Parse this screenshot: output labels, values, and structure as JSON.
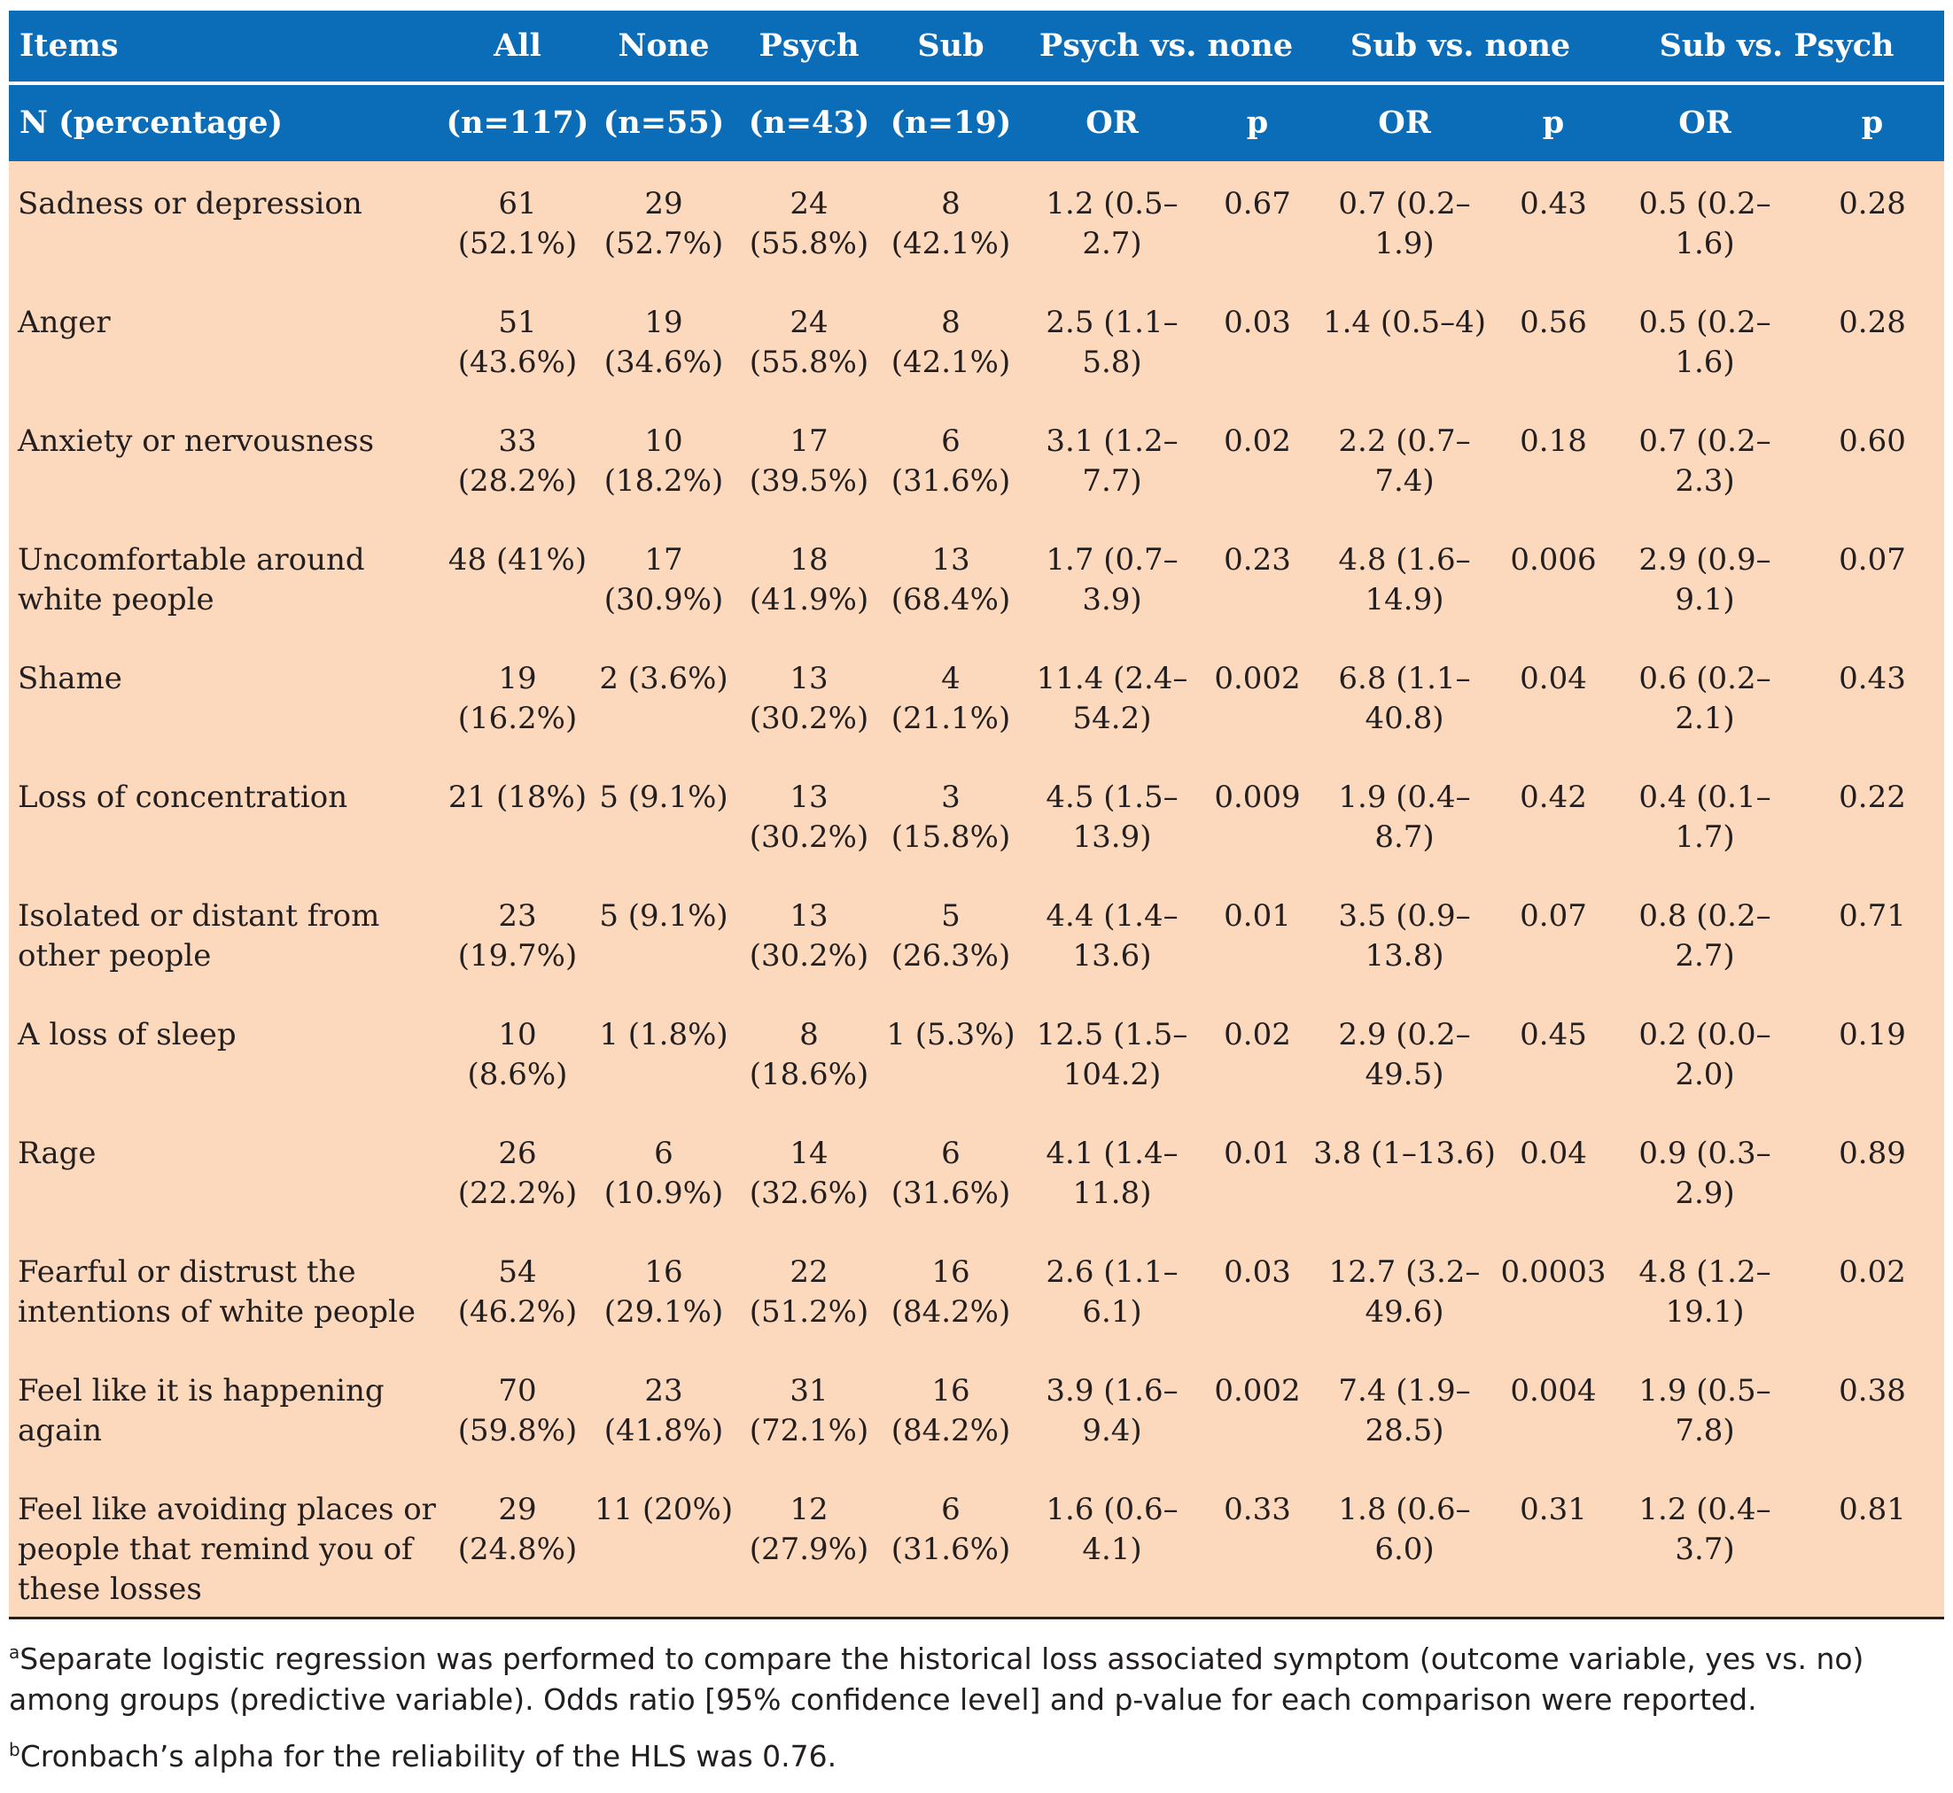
{
  "header": {
    "row1": [
      "Items",
      "All",
      "None",
      "Psych",
      "Sub",
      "Psych vs. none",
      "Sub vs. none",
      "Sub vs. Psych"
    ],
    "row2": [
      "N (percentage)",
      "(n=117)",
      "(n=55)",
      "(n=43)",
      "(n=19)",
      "OR",
      "p",
      "OR",
      "p",
      "OR",
      "p"
    ]
  },
  "rows": [
    {
      "item": "Sadness or depression",
      "all": "61 (52.1%)",
      "none": "29 (52.7%)",
      "psych": "24 (55.8%)",
      "sub": "8 (42.1%)",
      "or1": "1.2 (0.5–2.7)",
      "p1": "0.67",
      "or2": "0.7 (0.2–1.9)",
      "p2": "0.43",
      "or3": "0.5 (0.2–1.6)",
      "p3": "0.28"
    },
    {
      "item": "Anger",
      "all": "51 (43.6%)",
      "none": "19 (34.6%)",
      "psych": "24 (55.8%)",
      "sub": "8 (42.1%)",
      "or1": "2.5 (1.1–5.8)",
      "p1": "0.03",
      "or2": "1.4 (0.5–4)",
      "p2": "0.56",
      "or3": "0.5 (0.2–1.6)",
      "p3": "0.28"
    },
    {
      "item": "Anxiety or nervousness",
      "all": "33 (28.2%)",
      "none": "10 (18.2%)",
      "psych": "17 (39.5%)",
      "sub": "6 (31.6%)",
      "or1": "3.1 (1.2–7.7)",
      "p1": "0.02",
      "or2": "2.2 (0.7–7.4)",
      "p2": "0.18",
      "or3": "0.7 (0.2–2.3)",
      "p3": "0.60"
    },
    {
      "item": "Uncomfortable around white people",
      "all": "48 (41%)",
      "none": "17 (30.9%)",
      "psych": "18 (41.9%)",
      "sub": "13 (68.4%)",
      "or1": "1.7 (0.7–3.9)",
      "p1": "0.23",
      "or2": "4.8 (1.6–14.9)",
      "p2": "0.006",
      "or3": "2.9 (0.9–9.1)",
      "p3": "0.07"
    },
    {
      "item": "Shame",
      "all": "19 (16.2%)",
      "none": "2 (3.6%)",
      "psych": "13 (30.2%)",
      "sub": "4 (21.1%)",
      "or1": "11.4 (2.4–54.2)",
      "p1": "0.002",
      "or2": "6.8 (1.1–40.8)",
      "p2": "0.04",
      "or3": "0.6 (0.2–2.1)",
      "p3": "0.43"
    },
    {
      "item": "Loss of concentration",
      "all": "21 (18%)",
      "none": "5 (9.1%)",
      "psych": "13 (30.2%)",
      "sub": "3 (15.8%)",
      "or1": "4.5 (1.5–13.9)",
      "p1": "0.009",
      "or2": "1.9 (0.4–8.7)",
      "p2": "0.42",
      "or3": "0.4 (0.1–1.7)",
      "p3": "0.22"
    },
    {
      "item": "Isolated or distant from other people",
      "all": "23 (19.7%)",
      "none": "5 (9.1%)",
      "psych": "13 (30.2%)",
      "sub": "5 (26.3%)",
      "or1": "4.4 (1.4–13.6)",
      "p1": "0.01",
      "or2": "3.5 (0.9–13.8)",
      "p2": "0.07",
      "or3": "0.8 (0.2–2.7)",
      "p3": "0.71"
    },
    {
      "item": "A loss of sleep",
      "all": "10 (8.6%)",
      "none": "1 (1.8%)",
      "psych": "8 (18.6%)",
      "sub": "1 (5.3%)",
      "or1": "12.5 (1.5–104.2)",
      "p1": "0.02",
      "or2": "2.9 (0.2–49.5)",
      "p2": "0.45",
      "or3": "0.2 (0.0–2.0)",
      "p3": "0.19"
    },
    {
      "item": "Rage",
      "all": "26 (22.2%)",
      "none": "6 (10.9%)",
      "psych": "14 (32.6%)",
      "sub": "6 (31.6%)",
      "or1": "4.1 (1.4–11.8)",
      "p1": "0.01",
      "or2": "3.8 (1–13.6)",
      "p2": "0.04",
      "or3": "0.9 (0.3–2.9)",
      "p3": "0.89"
    },
    {
      "item": "Fearful or distrust the intentions of white people",
      "all": "54 (46.2%)",
      "none": "16 (29.1%)",
      "psych": "22 (51.2%)",
      "sub": "16 (84.2%)",
      "or1": "2.6 (1.1–6.1)",
      "p1": "0.03",
      "or2": "12.7 (3.2–49.6)",
      "p2": "0.0003",
      "or3": "4.8 (1.2–19.1)",
      "p3": "0.02"
    },
    {
      "item": "Feel like it is happening again",
      "all": "70 (59.8%)",
      "none": "23 (41.8%)",
      "psych": "31 (72.1%)",
      "sub": "16 (84.2%)",
      "or1": "3.9 (1.6–9.4)",
      "p1": "0.002",
      "or2": "7.4 (1.9–28.5)",
      "p2": "0.004",
      "or3": "1.9 (0.5–7.8)",
      "p3": "0.38"
    },
    {
      "item": "Feel like avoiding places or people that remind you of these losses",
      "all": "29 (24.8%)",
      "none": "11 (20%)",
      "psych": "12 (27.9%)",
      "sub": "6 (31.6%)",
      "or1": "1.6 (0.6–4.1)",
      "p1": "0.33",
      "or2": "1.8 (0.6–6.0)",
      "p2": "0.31",
      "or3": "1.2 (0.4–3.7)",
      "p3": "0.81"
    }
  ],
  "notes": [
    {
      "mark": "a",
      "text": "Separate logistic regression was performed to compare the historical loss associated symptom (outcome variable, yes vs. no) among groups (predictive variable). Odds ratio [95% confidence level] and p-value for each comparison were reported."
    },
    {
      "mark": "b",
      "text": "Cronbach’s alpha for the reliability of the HLS was 0.76."
    }
  ]
}
